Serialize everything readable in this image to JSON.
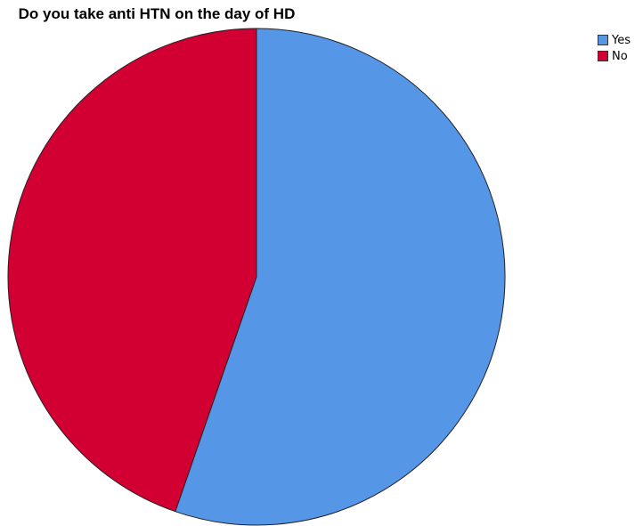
{
  "chart_data": {
    "type": "pie",
    "title": "Do you take anti HTN on the day of HD",
    "categories": [
      "Yes",
      "No"
    ],
    "values": [
      55.3,
      44.7
    ],
    "colors": [
      "#5596e6",
      "#d20032"
    ],
    "legend_position": "top-right",
    "start_angle_deg": 0,
    "direction": "clockwise"
  }
}
